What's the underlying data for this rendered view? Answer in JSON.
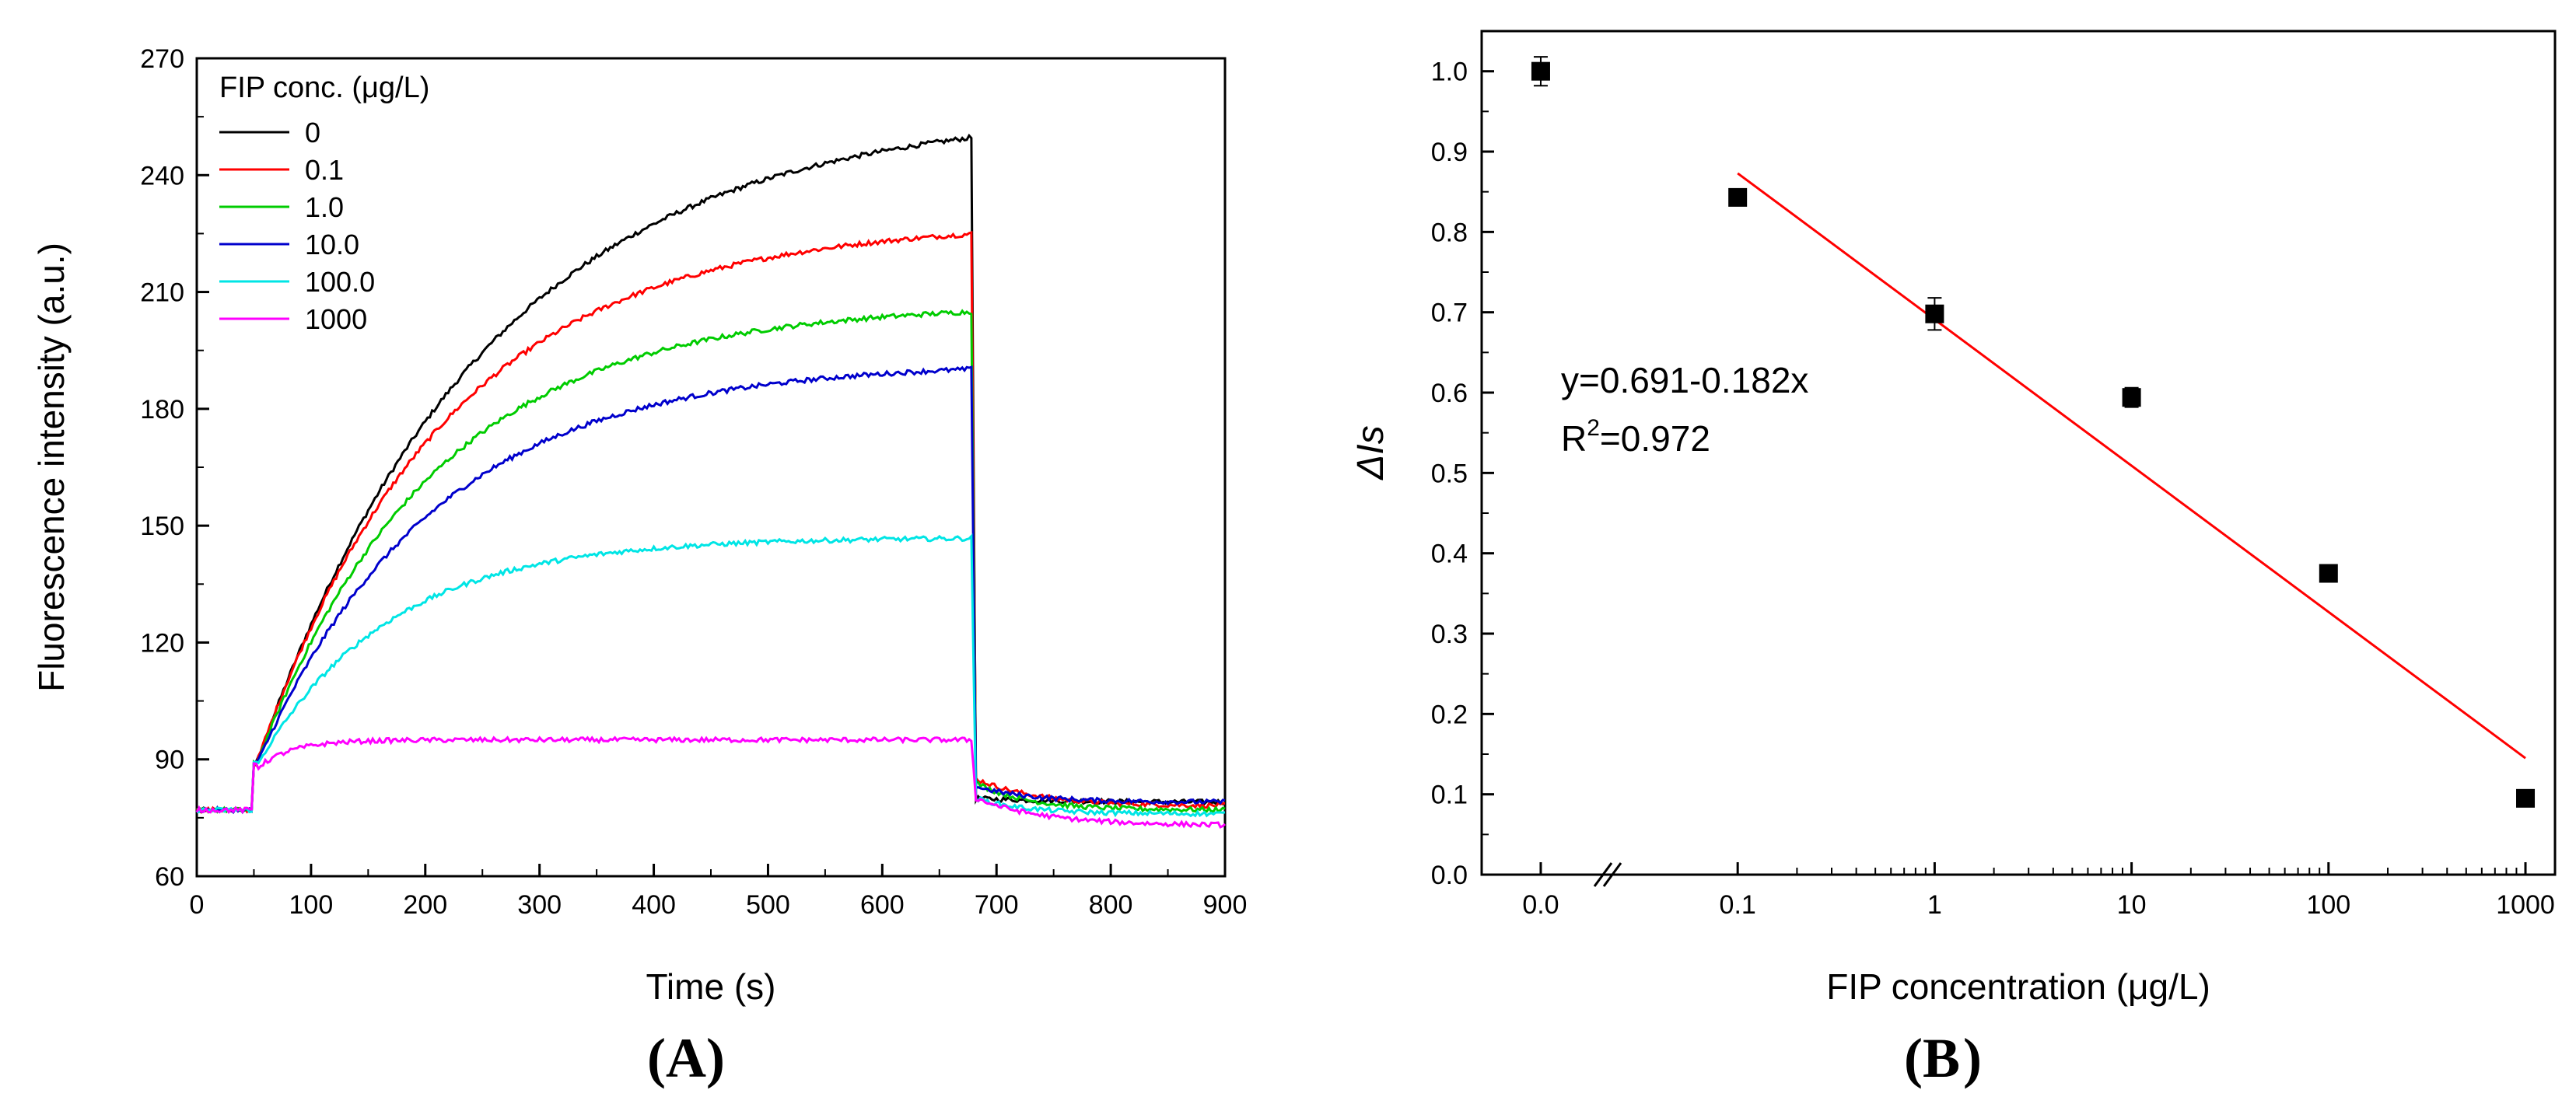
{
  "panels": {
    "a": {
      "label": "A"
    },
    "b": {
      "label": "B"
    }
  },
  "chart_data": [
    {
      "type": "line",
      "title": "",
      "xlabel": "Time (s)",
      "ylabel": "Fluorescence intensity (a.u.)",
      "xlim": [
        0,
        900
      ],
      "ylim": [
        60,
        270
      ],
      "x_ticks": [
        0,
        100,
        200,
        300,
        400,
        500,
        600,
        700,
        800,
        900
      ],
      "y_ticks": [
        60,
        90,
        120,
        150,
        180,
        210,
        240,
        270
      ],
      "grid": false,
      "legend": {
        "title": "FIP conc. (μg/L)",
        "position": "top-left"
      },
      "series": [
        {
          "name": "0",
          "color": "#000000",
          "baseline": 77,
          "plateau": 257,
          "tau": 200,
          "drop": 80,
          "final": 79,
          "tau2": 70
        },
        {
          "name": "0.1",
          "color": "#ff0000",
          "baseline": 77,
          "plateau": 228,
          "tau": 165,
          "drop": 85,
          "final": 78,
          "tau2": 55
        },
        {
          "name": "1.0",
          "color": "#00cc00",
          "baseline": 77,
          "plateau": 207,
          "tau": 155,
          "drop": 84,
          "final": 77,
          "tau2": 45
        },
        {
          "name": "10.0",
          "color": "#0000cc",
          "baseline": 77,
          "plateau": 192,
          "tau": 155,
          "drop": 83,
          "final": 79,
          "tau2": 50
        },
        {
          "name": "100.0",
          "color": "#00e5e5",
          "baseline": 77,
          "plateau": 147,
          "tau": 115,
          "drop": 80,
          "final": 76,
          "tau2": 45
        },
        {
          "name": "1000",
          "color": "#ff00ff",
          "baseline": 77,
          "plateau": 95,
          "tau": 30,
          "drop": 80,
          "final": 73,
          "tau2": 60
        }
      ]
    },
    {
      "type": "scatter",
      "title": "",
      "xlabel": "FIP concentration (μg/L)",
      "ylabel": "ΔIs",
      "xscale": "log",
      "xlim": [
        0.01,
        1000
      ],
      "ylim": [
        0,
        1.05
      ],
      "x_tick_labels": [
        "0.0",
        "0.1",
        "1",
        "10",
        "100",
        "1000"
      ],
      "y_ticks": [
        0.0,
        0.1,
        0.2,
        0.3,
        0.4,
        0.5,
        0.6,
        0.7,
        0.8,
        0.9,
        1.0
      ],
      "points": [
        {
          "x": 0,
          "y": 1.0,
          "err": 0.018
        },
        {
          "x": 0.1,
          "y": 0.843,
          "err": 0.008
        },
        {
          "x": 1,
          "y": 0.698,
          "err": 0.02
        },
        {
          "x": 10,
          "y": 0.594,
          "err": 0.012
        },
        {
          "x": 100,
          "y": 0.375,
          "err": 0.008
        },
        {
          "x": 1000,
          "y": 0.095,
          "err": 0.006
        }
      ],
      "fit": {
        "intercept": 0.691,
        "slope": -0.182,
        "x_range": [
          0.1,
          1000
        ],
        "color": "#ff0000"
      },
      "annotations": {
        "equation": "y=0.691-0.182x",
        "r2_prefix": "R",
        "r2_sup": "2",
        "r2_value": "=0.972"
      }
    }
  ]
}
